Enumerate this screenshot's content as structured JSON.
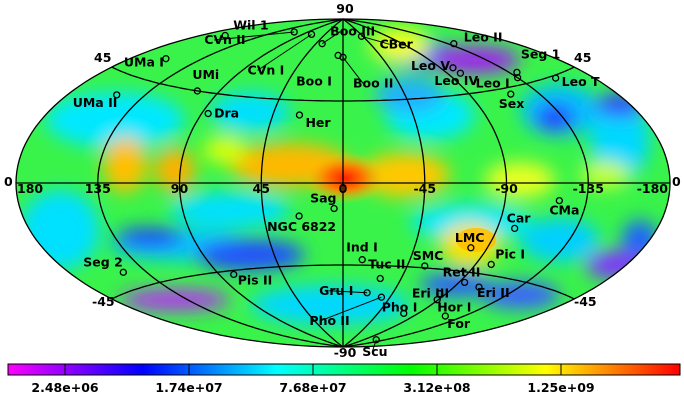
{
  "chart_data": {
    "type": "heatmap",
    "projection": "aitoff",
    "lon_ticks": [
      "180",
      "135",
      "90",
      "45",
      "0",
      "-45",
      "-90",
      "-135",
      "-180"
    ],
    "lat_ticks": [
      "90",
      "45",
      "-45",
      "-45",
      "-90"
    ],
    "colorbar": {
      "scale": "log",
      "colormap": [
        "#ff00ff",
        "#0000ff",
        "#00ffff",
        "#00ff00",
        "#ffff00",
        "#ff0000"
      ],
      "tick_labels": [
        "2.48e+06",
        "1.74e+07",
        "7.68e+07",
        "3.12e+08",
        "1.25e+09"
      ]
    },
    "galaxies": [
      {
        "name": "Boo III",
        "l": 35,
        "b": 76,
        "lbl": [
          8,
          -8
        ],
        "arrow": true
      },
      {
        "name": "CBer",
        "l": -42,
        "b": 80,
        "lbl": [
          18,
          12
        ],
        "arrow": true
      },
      {
        "name": "Leo II",
        "l": -140,
        "b": 67,
        "lbl": [
          10,
          -2
        ]
      },
      {
        "name": "Wil 1",
        "l": 165,
        "b": 68,
        "lbl": [
          8,
          -6
        ]
      },
      {
        "name": "UMa I",
        "l": 159,
        "b": 54,
        "lbl": [
          -42,
          8
        ]
      },
      {
        "name": "CVn II",
        "l": 113,
        "b": 79,
        "lbl": [
          -90,
          12
        ],
        "arrow": true
      },
      {
        "name": "Leo V",
        "l": -100,
        "b": 58,
        "lbl": [
          -42,
          2
        ]
      },
      {
        "name": "Seg 1",
        "l": -140,
        "b": 50,
        "lbl": [
          4,
          -14
        ]
      },
      {
        "name": "UMi",
        "l": 105,
        "b": 45,
        "lbl": [
          -5,
          -12
        ]
      },
      {
        "name": "CVn I",
        "l": 74,
        "b": 80,
        "lbl": [
          -64,
          40
        ],
        "arrow": true
      },
      {
        "name": "Boo I",
        "l": 6,
        "b": 70,
        "lbl": [
          -42,
          30
        ]
      },
      {
        "name": "Boo II",
        "l": 0,
        "b": 69,
        "lbl": [
          10,
          30
        ],
        "arrow": true
      },
      {
        "name": "Leo IV",
        "l": -100,
        "b": 55,
        "lbl": [
          -26,
          12
        ]
      },
      {
        "name": "Leo I",
        "l": -135,
        "b": 48,
        "lbl": [
          -42,
          10
        ]
      },
      {
        "name": "Leo T",
        "l": -158,
        "b": 44,
        "lbl": [
          6,
          8
        ]
      },
      {
        "name": "UMa II",
        "l": 152,
        "b": 37,
        "lbl": [
          -44,
          12
        ]
      },
      {
        "name": "Sex",
        "l": -117,
        "b": 42,
        "lbl": [
          -12,
          14
        ]
      },
      {
        "name": "Dra",
        "l": 86,
        "b": 35,
        "lbl": [
          6,
          4
        ]
      },
      {
        "name": "Her",
        "l": 28,
        "b": 37,
        "lbl": [
          6,
          12
        ]
      },
      {
        "name": "Sag",
        "l": 5,
        "b": -14,
        "lbl": [
          -24,
          -6
        ]
      },
      {
        "name": "CMa",
        "l": -120,
        "b": -8,
        "lbl": [
          -10,
          14
        ]
      },
      {
        "name": "NGC 6822",
        "l": 25,
        "b": -18,
        "lbl": [
          -32,
          15
        ]
      },
      {
        "name": "Car",
        "l": -100,
        "b": -22,
        "lbl": [
          -8,
          -6
        ]
      },
      {
        "name": "LMC",
        "l": -80,
        "b": -33,
        "lbl": [
          -16,
          -6
        ]
      },
      {
        "name": "Ind I",
        "l": -13,
        "b": -42,
        "lbl": [
          -16,
          -8
        ]
      },
      {
        "name": "Seg 2",
        "l": 149,
        "b": -38,
        "lbl": [
          -40,
          -6
        ]
      },
      {
        "name": "SMC",
        "l": -57,
        "b": -44,
        "lbl": [
          -12,
          -6
        ]
      },
      {
        "name": "Pic I",
        "l": -100,
        "b": -40,
        "lbl": [
          4,
          -6
        ]
      },
      {
        "name": "Tuc II",
        "l": -29,
        "b": -52,
        "lbl": [
          -12,
          -10
        ]
      },
      {
        "name": "Ret II",
        "l": -94,
        "b": -50,
        "lbl": [
          -22,
          -6
        ]
      },
      {
        "name": "Pis II",
        "l": 80,
        "b": -47,
        "lbl": [
          4,
          10
        ]
      },
      {
        "name": "Gru I",
        "l": -22,
        "b": -60,
        "lbl": [
          -48,
          2
        ],
        "arrow": true
      },
      {
        "name": "Eri III",
        "l": -85,
        "b": -57,
        "lbl": [
          -28,
          4
        ]
      },
      {
        "name": "Eri II",
        "l": -108,
        "b": -51,
        "lbl": [
          -2,
          10
        ]
      },
      {
        "name": "Hor I",
        "l": -89,
        "b": -60,
        "lbl": [
          0,
          12
        ]
      },
      {
        "name": "Pho I",
        "l": -75,
        "b": -69,
        "lbl": [
          -22,
          -2
        ]
      },
      {
        "name": "Pho II",
        "l": -37,
        "b": -62,
        "lbl": [
          -72,
          28
        ],
        "arrow": true
      },
      {
        "name": "Scu",
        "l": -120,
        "b": -83,
        "lbl": [
          -14,
          16
        ],
        "arrow": true
      },
      {
        "name": "For",
        "l": -120,
        "b": -66,
        "lbl": [
          2,
          12
        ]
      }
    ]
  }
}
